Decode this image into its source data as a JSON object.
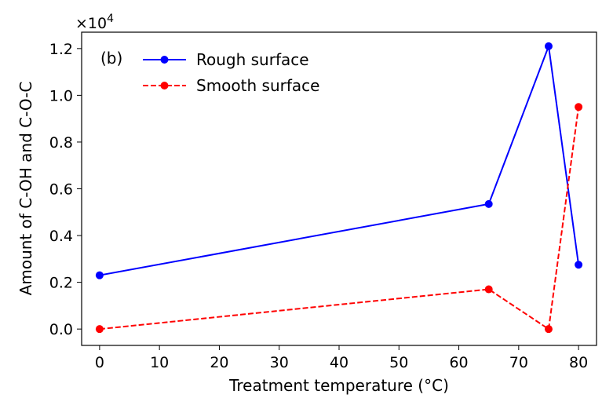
{
  "chart_data": {
    "type": "line",
    "panel_label": "(b)",
    "xlabel": "Treatment temperature (°C)",
    "ylabel": "Amount of C-OH and C-O-C",
    "y_scale_prefix": "×10",
    "y_scale_exponent": "4",
    "xlim": [
      -3,
      83
    ],
    "ylim": [
      -0.07,
      1.27
    ],
    "xticks": [
      0,
      10,
      20,
      30,
      40,
      50,
      60,
      70,
      80
    ],
    "yticks": [
      0.0,
      0.2,
      0.4,
      0.6,
      0.8,
      1.0,
      1.2
    ],
    "ytick_labels": [
      "0.0",
      "0.2",
      "0.4",
      "0.6",
      "0.8",
      "1.0",
      "1.2"
    ],
    "legend_position": "upper-left",
    "series": [
      {
        "name": "Rough surface",
        "color": "#0000ff",
        "linestyle": "solid",
        "x": [
          0,
          65,
          75,
          80
        ],
        "y": [
          0.23,
          0.535,
          1.21,
          0.275
        ]
      },
      {
        "name": "Smooth surface",
        "color": "#ff0000",
        "linestyle": "dashed",
        "x": [
          0,
          65,
          75,
          80
        ],
        "y": [
          0.0,
          0.17,
          0.0,
          0.95
        ]
      }
    ]
  }
}
